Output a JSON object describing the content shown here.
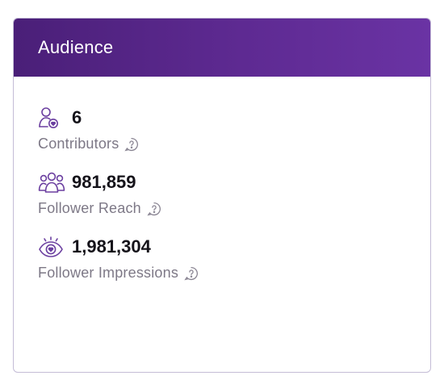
{
  "card": {
    "title": "Audience"
  },
  "metrics": [
    {
      "icon": "contributor-icon",
      "value": "6",
      "label": "Contributors",
      "help_icon": "question-circle-icon"
    },
    {
      "icon": "people-group-icon",
      "value": "981,859",
      "label": "Follower Reach",
      "help_icon": "question-circle-icon"
    },
    {
      "icon": "eye-heart-icon",
      "value": "1,981,304",
      "label": "Follower Impressions",
      "help_icon": "question-circle-icon"
    }
  ],
  "colors": {
    "header_start": "#4a1f78",
    "header_end": "#6a33a4",
    "icon_purple": "#6b3fa0",
    "label_gray": "#7d7886",
    "value_dark": "#15131a",
    "border": "#c4bcd6"
  }
}
